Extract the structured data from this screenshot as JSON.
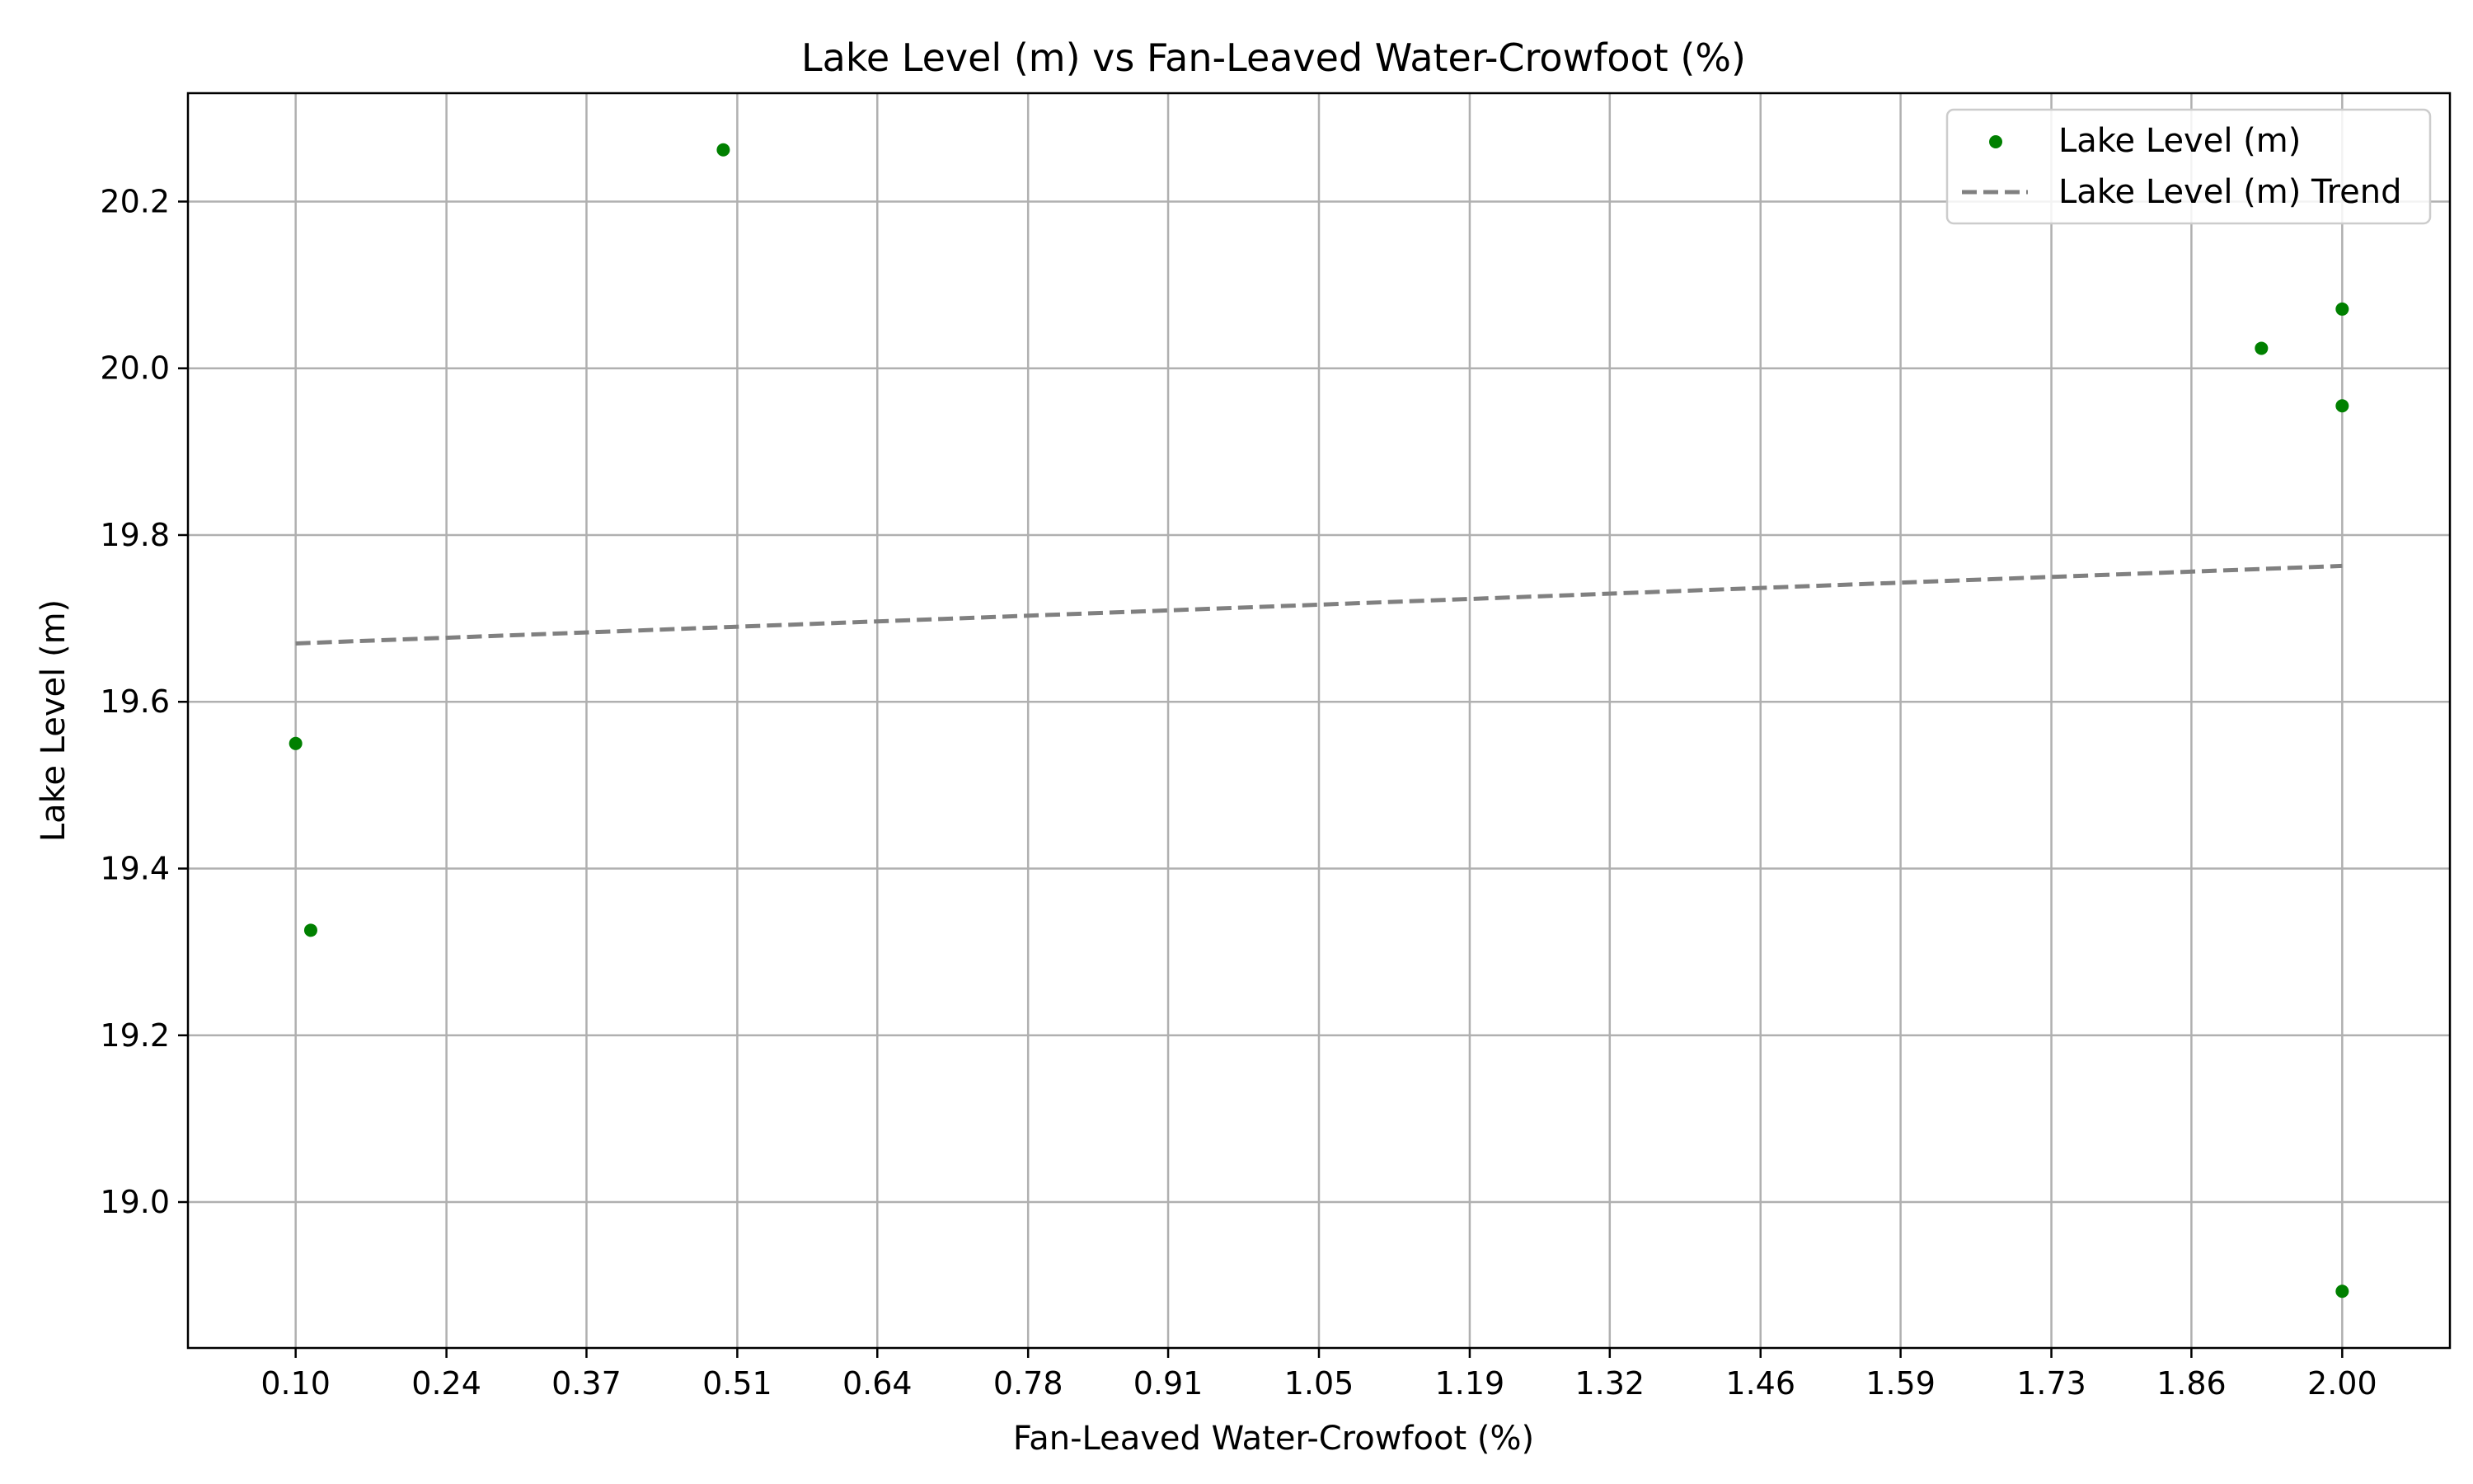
{
  "chart_data": {
    "type": "scatter",
    "title": "Lake Level (m) vs Fan-Leaved Water-Crowfoot (%)",
    "xlabel": "Fan-Leaved Water-Crowfoot (%)",
    "ylabel": "Lake Level (m)",
    "xlim": [
      0.0,
      2.1
    ],
    "ylim": [
      18.825,
      20.33
    ],
    "x_ticks": [
      0.1,
      0.24,
      0.37,
      0.51,
      0.64,
      0.78,
      0.91,
      1.05,
      1.19,
      1.32,
      1.46,
      1.59,
      1.73,
      1.86,
      2.0
    ],
    "x_tick_labels": [
      "0.10",
      "0.24",
      "0.37",
      "0.51",
      "0.64",
      "0.78",
      "0.91",
      "1.05",
      "1.19",
      "1.32",
      "1.46",
      "1.59",
      "1.73",
      "1.86",
      "2.00"
    ],
    "y_ticks": [
      19.0,
      19.2,
      19.4,
      19.6,
      19.8,
      20.0,
      20.2
    ],
    "y_tick_labels": [
      "19.0",
      "19.2",
      "19.4",
      "19.6",
      "19.8",
      "20.0",
      "20.2"
    ],
    "grid": true,
    "legend_position": "top-right",
    "series": [
      {
        "name": "Lake Level (m)",
        "kind": "scatter",
        "color": "#008000",
        "points": [
          {
            "x": 0.1,
            "y": 19.55
          },
          {
            "x": 0.114,
            "y": 19.326
          },
          {
            "x": 0.497,
            "y": 20.262
          },
          {
            "x": 1.925,
            "y": 20.024
          },
          {
            "x": 2.0,
            "y": 20.071
          },
          {
            "x": 2.0,
            "y": 19.955
          },
          {
            "x": 2.0,
            "y": 18.893
          }
        ]
      },
      {
        "name": "Lake Level (m) Trend",
        "kind": "line",
        "style": "dashed",
        "color": "#808080",
        "points": [
          {
            "x": 0.1,
            "y": 19.67
          },
          {
            "x": 2.0,
            "y": 19.763
          }
        ]
      }
    ]
  }
}
